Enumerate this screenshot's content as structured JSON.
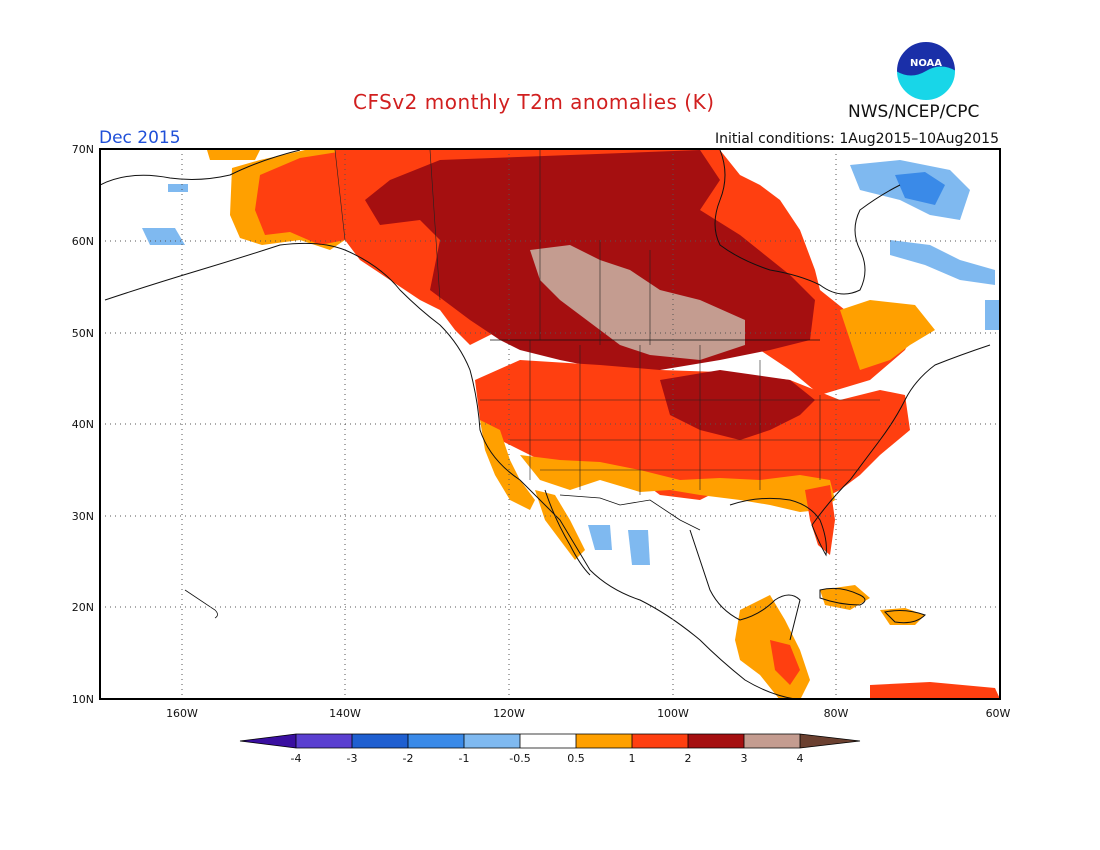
{
  "header": {
    "title": "CFSv2 monthly T2m anomalies (K)",
    "month": "Dec 2015",
    "initial_conditions": "Initial conditions: 1Aug2015–10Aug2015",
    "agency": "NWS/NCEP/CPC",
    "logo_text": "NOAA"
  },
  "map": {
    "lat_labels": [
      "70N",
      "60N",
      "50N",
      "40N",
      "30N",
      "20N",
      "10N"
    ],
    "lon_labels": [
      "160W",
      "140W",
      "120W",
      "100W",
      "80W",
      "60W"
    ]
  },
  "colorbar": {
    "labels": [
      "-4",
      "-3",
      "-2",
      "-1",
      "-0.5",
      "0.5",
      "1",
      "2",
      "3",
      "4"
    ],
    "colors": {
      "lt_m4": "#3a0fa0",
      "m4_m3": "#5a3fd0",
      "m3_m2": "#1f5fd0",
      "m2_m1": "#3a8ae8",
      "m1_m05": "#7fb9f0",
      "neutral": "#ffffff",
      "p05_p1": "#ffa000",
      "p1_p2": "#ff3f10",
      "p2_p3": "#a50f10",
      "p3_p4": "#c49c90",
      "gt_p4": "#6b4030"
    }
  }
}
